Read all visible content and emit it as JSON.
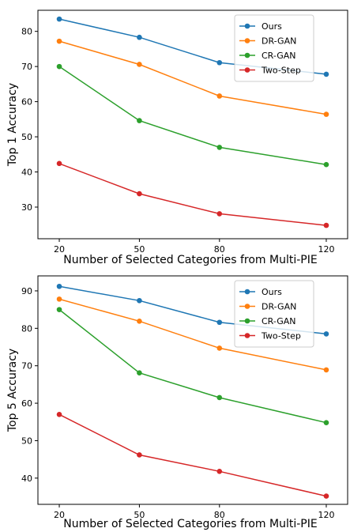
{
  "chart_data": [
    {
      "type": "line",
      "ylabel": "Top 1 Accuracy",
      "xlabel": "Number of Selected Categories from Multi-PIE",
      "x": [
        20,
        50,
        80,
        120
      ],
      "xticks": [
        "20",
        "50",
        "80",
        "120"
      ],
      "yticks": [
        30,
        40,
        50,
        60,
        70,
        80
      ],
      "ylim": [
        21,
        86
      ],
      "grid": false,
      "legend_position": "top-right",
      "series": [
        {
          "name": "Ours",
          "color": "#1f77b4",
          "values": [
            83.5,
            78.3,
            71.1,
            67.8
          ]
        },
        {
          "name": "DR-GAN",
          "color": "#ff7f0e",
          "values": [
            77.2,
            70.6,
            61.6,
            56.4
          ]
        },
        {
          "name": "CR-GAN",
          "color": "#2ca02c",
          "values": [
            70.0,
            54.6,
            47.0,
            42.1
          ]
        },
        {
          "name": "Two-Step",
          "color": "#d62728",
          "values": [
            42.4,
            33.8,
            28.1,
            24.8
          ]
        }
      ]
    },
    {
      "type": "line",
      "ylabel": "Top 5 Accuracy",
      "xlabel": "Number of Selected Categories from Multi-PIE",
      "x": [
        20,
        50,
        80,
        120
      ],
      "xticks": [
        "20",
        "50",
        "80",
        "120"
      ],
      "yticks": [
        40,
        50,
        60,
        70,
        80,
        90
      ],
      "ylim": [
        33,
        94
      ],
      "grid": false,
      "legend_position": "top-right",
      "series": [
        {
          "name": "Ours",
          "color": "#1f77b4",
          "values": [
            91.2,
            87.4,
            81.6,
            78.5
          ]
        },
        {
          "name": "DR-GAN",
          "color": "#ff7f0e",
          "values": [
            87.8,
            81.9,
            74.7,
            68.9
          ]
        },
        {
          "name": "CR-GAN",
          "color": "#2ca02c",
          "values": [
            85.0,
            68.1,
            61.5,
            54.8
          ]
        },
        {
          "name": "Two-Step",
          "color": "#d62728",
          "values": [
            57.0,
            46.2,
            41.8,
            35.2
          ]
        }
      ]
    }
  ]
}
